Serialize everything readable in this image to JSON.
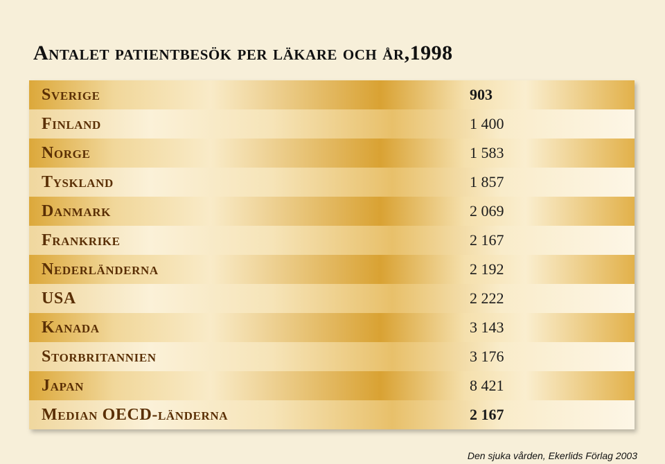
{
  "chart_data": {
    "type": "table",
    "title": "Antalet patientbesök per läkare och år,1998",
    "rows": [
      {
        "label": "Sverige",
        "display": "903",
        "value": 903,
        "bold": true
      },
      {
        "label": "Finland",
        "display": "1 400",
        "value": 1400,
        "bold": false
      },
      {
        "label": "Norge",
        "display": "1 583",
        "value": 1583,
        "bold": false
      },
      {
        "label": "Tyskland",
        "display": "1 857",
        "value": 1857,
        "bold": false
      },
      {
        "label": "Danmark",
        "display": "2 069",
        "value": 2069,
        "bold": false
      },
      {
        "label": "Frankrike",
        "display": "2 167",
        "value": 2167,
        "bold": false
      },
      {
        "label": "Nederländerna",
        "display": "2 192",
        "value": 2192,
        "bold": false
      },
      {
        "label": "USA",
        "display": "2 222",
        "value": 2222,
        "bold": false
      },
      {
        "label": "Kanada",
        "display": "3 143",
        "value": 3143,
        "bold": false
      },
      {
        "label": "Storbritannien",
        "display": "3 176",
        "value": 3176,
        "bold": false
      },
      {
        "label": "Japan",
        "display": "8 421",
        "value": 8421,
        "bold": false
      },
      {
        "label": "Median OECD-länderna",
        "display": "2 167",
        "value": 2167,
        "bold": true
      }
    ],
    "source": "Den sjuka vården, Ekerlids Förlag 2003"
  },
  "colors": {
    "background": "#f7efd9",
    "gold": "#d9a233",
    "label": "#5a2f05",
    "text": "#1a1a1a"
  }
}
